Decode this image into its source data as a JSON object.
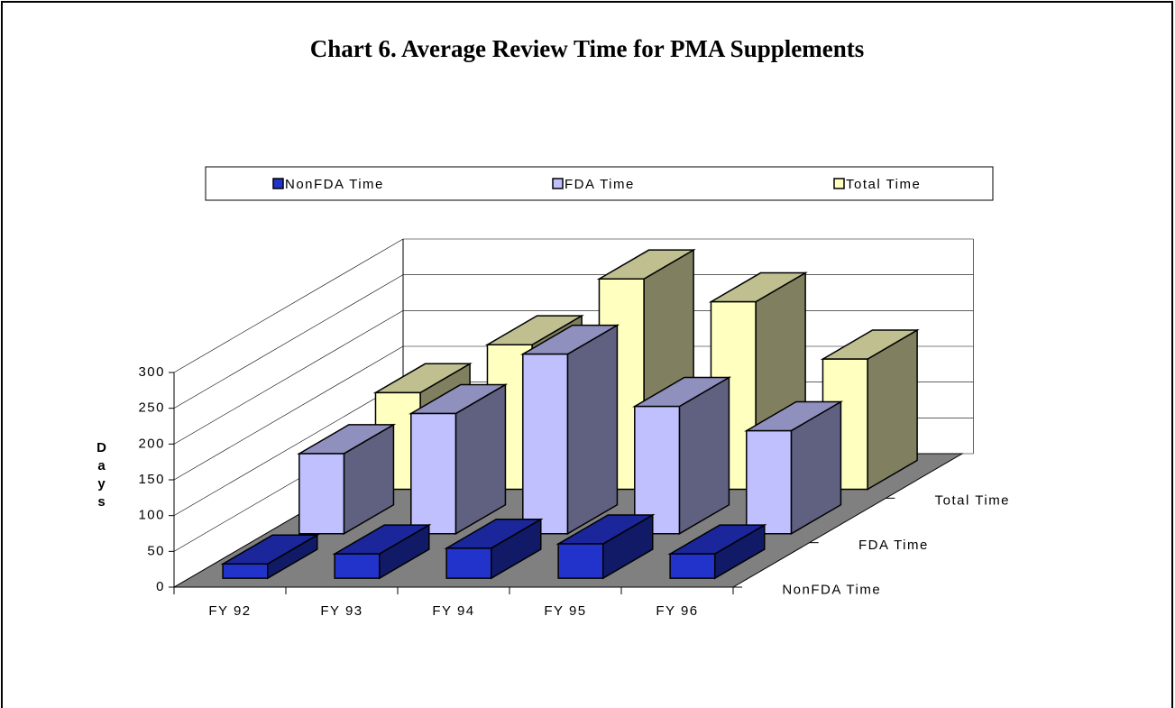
{
  "chart_data": {
    "type": "bar3d",
    "title": "Chart 6.  Average Review Time for PMA Supplements",
    "y_label": "Days",
    "categories": [
      "FY 92",
      "FY 93",
      "FY 94",
      "FY 95",
      "FY 96"
    ],
    "series": [
      {
        "name": "NonFDA Time",
        "color": "#2233cc",
        "values": [
          20,
          34,
          42,
          48,
          34
        ]
      },
      {
        "name": "FDA Time",
        "color": "#c0c0ff",
        "values": [
          112,
          168,
          251,
          178,
          144
        ]
      },
      {
        "name": "Total Time",
        "color": "#ffffc0",
        "values": [
          135,
          202,
          294,
          262,
          182
        ]
      }
    ],
    "ylim": [
      0,
      300
    ],
    "yticks": [
      0,
      50,
      100,
      150,
      200,
      250,
      300
    ],
    "grid": true,
    "legend": "top"
  }
}
